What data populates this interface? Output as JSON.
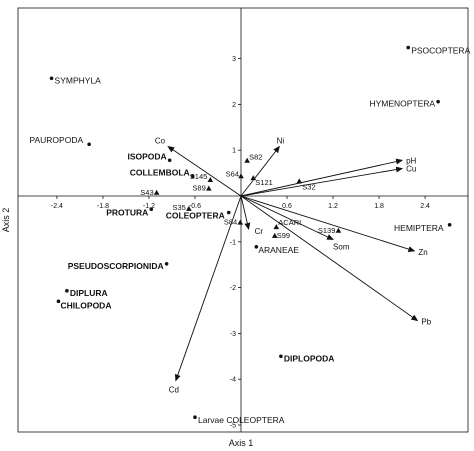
{
  "chart_data": {
    "type": "scatter",
    "title": "",
    "xlabel": "Axis 1",
    "ylabel": "Axis 2",
    "xlim": [
      -2.75,
      2.75
    ],
    "ylim": [
      -5.5,
      4.2
    ],
    "grid": false,
    "origin_lines": true,
    "x_ticks": [
      {
        "v": -2.4,
        "label": "-2.4"
      },
      {
        "v": -1.8,
        "label": "-1.8"
      },
      {
        "v": -1.2,
        "label": "-1.2"
      },
      {
        "v": -0.6,
        "label": "-0.6"
      },
      {
        "v": 0.6,
        "label": "0.6"
      },
      {
        "v": 1.2,
        "label": "1.2"
      },
      {
        "v": 1.8,
        "label": "1.8"
      },
      {
        "v": 2.4,
        "label": "2.4"
      }
    ],
    "y_ticks": [
      {
        "v": -5,
        "label": "-5"
      },
      {
        "v": -4,
        "label": "-4"
      },
      {
        "v": -3,
        "label": "-3"
      },
      {
        "v": -2,
        "label": "-2"
      },
      {
        "v": -1,
        "label": "-1"
      },
      {
        "v": 1,
        "label": "1"
      },
      {
        "v": 2,
        "label": "2"
      },
      {
        "v": 3,
        "label": "3"
      }
    ],
    "taxa": [
      {
        "name": "PSOCOPTERA",
        "x": 2.18,
        "y": 3.24,
        "anchor": "start",
        "dx": 3,
        "dy": 6,
        "bold": false
      },
      {
        "name": "SYMPHYLA",
        "x": -2.47,
        "y": 2.57,
        "anchor": "start",
        "dx": 3,
        "dy": 5,
        "bold": false
      },
      {
        "name": "HYMENOPTERA",
        "x": 2.57,
        "y": 2.06,
        "anchor": "end",
        "dx": -3,
        "dy": 5,
        "bold": false
      },
      {
        "name": "PAUROPODA",
        "x": -1.98,
        "y": 1.13,
        "anchor": "end",
        "dx": -6,
        "dy": -1,
        "bold": false
      },
      {
        "name": "ISOPODA",
        "x": -0.93,
        "y": 0.78,
        "anchor": "end",
        "dx": -3,
        "dy": -1,
        "bold": true
      },
      {
        "name": "COLLEMBOLA",
        "x": -0.63,
        "y": 0.43,
        "anchor": "end",
        "dx": -3,
        "dy": -1,
        "bold": true
      },
      {
        "name": "PROTURA",
        "x": -1.17,
        "y": -0.29,
        "anchor": "end",
        "dx": -3,
        "dy": 6,
        "bold": true
      },
      {
        "name": "COLEOPTERA",
        "x": -0.16,
        "y": -0.36,
        "anchor": "end",
        "dx": -4,
        "dy": 6,
        "bold": true
      },
      {
        "name": "HEMIPTERA",
        "x": 2.72,
        "y": -0.63,
        "anchor": "end",
        "dx": -6,
        "dy": 6,
        "bold": false
      },
      {
        "name": "ARANEAE",
        "x": 0.2,
        "y": -1.11,
        "anchor": "start",
        "dx": 2,
        "dy": 6,
        "bold": false
      },
      {
        "name": "PSEUDOSCORPIONIDA",
        "x": -0.97,
        "y": -1.48,
        "anchor": "end",
        "dx": -3,
        "dy": 5,
        "bold": true
      },
      {
        "name": "DIPLURA",
        "x": -2.27,
        "y": -2.07,
        "anchor": "start",
        "dx": 3,
        "dy": 5,
        "bold": true
      },
      {
        "name": "CHILOPODA",
        "x": -2.38,
        "y": -2.3,
        "anchor": "start",
        "dx": 2,
        "dy": 7,
        "bold": true
      },
      {
        "name": "DIPLOPODA",
        "x": 0.52,
        "y": -3.5,
        "anchor": "start",
        "dx": 3,
        "dy": 5,
        "bold": true
      },
      {
        "name": "Larvae COLEOPTERA",
        "x": -0.6,
        "y": -4.83,
        "anchor": "start",
        "dx": 3,
        "dy": 6,
        "bold": false
      }
    ],
    "sites": [
      {
        "name": "S82",
        "x": 0.08,
        "y": 0.77,
        "anchor": "start",
        "dx": 2,
        "dy": -1
      },
      {
        "name": "S64",
        "x": 0.0,
        "y": 0.43,
        "anchor": "end",
        "dx": -2,
        "dy": 0
      },
      {
        "name": "S145",
        "x": -0.4,
        "y": 0.35,
        "anchor": "end",
        "dx": -3,
        "dy": -1
      },
      {
        "name": "S121",
        "x": 0.16,
        "y": 0.39,
        "anchor": "start",
        "dx": 2,
        "dy": 7
      },
      {
        "name": "S89",
        "x": -0.42,
        "y": 0.16,
        "anchor": "end",
        "dx": -3,
        "dy": 2
      },
      {
        "name": "S43",
        "x": -1.1,
        "y": 0.07,
        "anchor": "end",
        "dx": -3,
        "dy": 2
      },
      {
        "name": "S32",
        "x": 0.76,
        "y": 0.32,
        "anchor": "start",
        "dx": 3,
        "dy": 8
      },
      {
        "name": "S35",
        "x": -0.68,
        "y": -0.28,
        "anchor": "end",
        "dx": -3,
        "dy": 1
      },
      {
        "name": "S84",
        "x": -0.01,
        "y": -0.58,
        "anchor": "end",
        "dx": -3,
        "dy": 2
      },
      {
        "name": "ACARI",
        "x": 0.46,
        "y": -0.68,
        "anchor": "start",
        "dx": 2,
        "dy": -2
      },
      {
        "name": "S139",
        "x": 1.27,
        "y": -0.76,
        "anchor": "end",
        "dx": -3,
        "dy": 2
      },
      {
        "name": "S99",
        "x": 0.44,
        "y": -0.87,
        "anchor": "start",
        "dx": 2,
        "dy": 2
      }
    ],
    "env_vectors": [
      {
        "name": "Co",
        "x": -0.95,
        "y": 1.08,
        "dx": -3,
        "dy": -3,
        "anchor": "end"
      },
      {
        "name": "Ni",
        "x": 0.5,
        "y": 1.08,
        "dx": 1,
        "dy": -3,
        "anchor": "middle"
      },
      {
        "name": "pH",
        "x": 2.1,
        "y": 0.78,
        "dx": 4,
        "dy": 3,
        "anchor": "start"
      },
      {
        "name": "Cu",
        "x": 2.1,
        "y": 0.6,
        "dx": 4,
        "dy": 3,
        "anchor": "start"
      },
      {
        "name": "Cr",
        "x": 0.1,
        "y": -0.72,
        "dx": 6,
        "dy": 5,
        "anchor": "start"
      },
      {
        "name": "Som",
        "x": 1.2,
        "y": -0.95,
        "dx": 0,
        "dy": 10,
        "anchor": "start"
      },
      {
        "name": "Zn",
        "x": 2.26,
        "y": -1.2,
        "dx": 4,
        "dy": 4,
        "anchor": "start"
      },
      {
        "name": "Pb",
        "x": 2.3,
        "y": -2.72,
        "dx": 4,
        "dy": 4,
        "anchor": "start"
      },
      {
        "name": "Cd",
        "x": -0.85,
        "y": -4.03,
        "dx": -2,
        "dy": 12,
        "anchor": "middle"
      }
    ]
  }
}
